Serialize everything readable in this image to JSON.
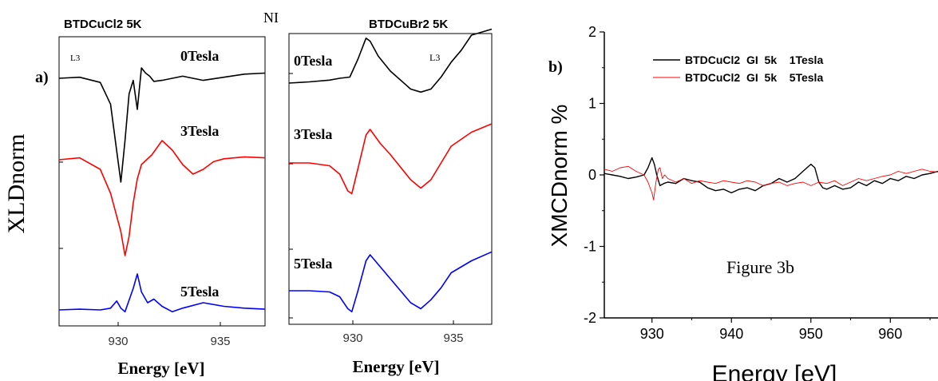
{
  "chart_data": [
    {
      "type": "line",
      "panel_label": "a)",
      "title": "BTDCuCl2  5K",
      "ylabel": "XLDnorm",
      "xlabel": "Energy [eV]",
      "xticks": [
        "930",
        "935"
      ],
      "xlim": [
        927,
        937
      ],
      "edge_label": "L3",
      "series": [
        {
          "name": "0Tesla",
          "color": "#000000",
          "x": [
            927,
            928,
            929,
            929.5,
            929.8,
            930,
            930.2,
            930.4,
            930.6,
            930.8,
            931,
            931.2,
            931.4,
            931.6,
            932,
            933,
            934,
            935,
            936,
            937
          ],
          "y": [
            0,
            0.01,
            -0.04,
            -0.25,
            -0.7,
            -1.0,
            -0.6,
            -0.15,
            -0.02,
            -0.3,
            0.1,
            0.05,
            0.02,
            -0.03,
            -0.02,
            0.02,
            -0.02,
            0.01,
            0.04,
            0.05
          ]
        },
        {
          "name": "3Tesla",
          "color": "#ff0000",
          "x": [
            927,
            928,
            929,
            929.5,
            930,
            930.2,
            930.4,
            930.6,
            930.8,
            931,
            931.5,
            932,
            932.5,
            933,
            933.5,
            934,
            934.5,
            935,
            936,
            937
          ],
          "y": [
            0,
            0.02,
            -0.1,
            -0.35,
            -0.75,
            -1.0,
            -0.8,
            -0.45,
            -0.2,
            -0.05,
            0.05,
            0.2,
            0.1,
            -0.05,
            -0.15,
            -0.1,
            -0.02,
            0.01,
            0.03,
            0.02
          ]
        },
        {
          "name": "5Tesla",
          "color": "#0000ff",
          "x": [
            927,
            928,
            929,
            929.5,
            929.8,
            930,
            930.2,
            930.6,
            930.8,
            931,
            931.3,
            931.6,
            932,
            932.5,
            933,
            934,
            935,
            936,
            937
          ],
          "y": [
            0,
            0.02,
            0.0,
            0.05,
            0.25,
            0.05,
            -0.05,
            0.6,
            1.0,
            0.5,
            0.2,
            0.3,
            0.1,
            -0.05,
            0.05,
            0.2,
            0.1,
            0.05,
            0.02
          ]
        }
      ]
    },
    {
      "type": "line",
      "title": "BTDCuBr2  5K",
      "header": "NI",
      "xlabel": "Energy [eV]",
      "xticks": [
        "930",
        "935"
      ],
      "xlim": [
        927,
        937
      ],
      "edge_label": "L3",
      "series": [
        {
          "name": "0Tesla",
          "color": "#000000",
          "x": [
            927,
            928,
            929,
            929.5,
            930,
            930.4,
            930.8,
            931,
            931.4,
            932,
            933,
            933.5,
            934,
            934.5,
            935,
            935.5,
            936,
            937
          ],
          "y": [
            0,
            0.02,
            0.05,
            0.08,
            0.1,
            0.4,
            0.75,
            0.7,
            0.45,
            0.2,
            -0.1,
            -0.15,
            -0.1,
            0.1,
            0.35,
            0.55,
            0.8,
            0.9
          ]
        },
        {
          "name": "3Tesla",
          "color": "#ff0000",
          "x": [
            927,
            928,
            929,
            929.5,
            929.9,
            930.1,
            930.4,
            930.8,
            931,
            931.5,
            932,
            933,
            933.5,
            934,
            934.5,
            935,
            936,
            937
          ],
          "y": [
            0,
            0.0,
            -0.05,
            -0.2,
            -0.5,
            -0.55,
            -0.1,
            0.5,
            0.6,
            0.35,
            0.15,
            -0.3,
            -0.45,
            -0.3,
            0.0,
            0.3,
            0.55,
            0.7
          ]
        },
        {
          "name": "5Tesla",
          "color": "#0000ff",
          "x": [
            927,
            928,
            929,
            929.5,
            929.9,
            930.1,
            930.4,
            930.8,
            931,
            931.5,
            932,
            933,
            933.5,
            934,
            934.5,
            935,
            936,
            937
          ],
          "y": [
            0,
            0.0,
            -0.02,
            -0.1,
            -0.3,
            -0.35,
            0.0,
            0.5,
            0.6,
            0.4,
            0.2,
            -0.2,
            -0.3,
            -0.15,
            0.05,
            0.3,
            0.5,
            0.65
          ]
        }
      ]
    },
    {
      "type": "line",
      "panel_label": "b)",
      "ylabel": "XMCDnorm %",
      "xlabel": "Energy [eV]",
      "xlim": [
        924,
        966
      ],
      "ylim": [
        -2,
        2
      ],
      "xticks": [
        930,
        940,
        950,
        960
      ],
      "yticks": [
        -2,
        -1,
        0,
        1,
        2
      ],
      "annotation": "Figure 3b",
      "series": [
        {
          "name": "BTDCuCl2  GI  5k    1Tesla",
          "color": "#000000",
          "x": [
            924,
            925,
            926,
            927,
            928,
            929,
            929.5,
            930,
            930.3,
            930.6,
            931,
            931.5,
            932,
            933,
            934,
            935,
            936,
            937,
            938,
            939,
            940,
            941,
            942,
            943,
            944,
            945,
            946,
            947,
            948,
            949,
            950,
            950.5,
            951,
            951.5,
            952,
            953,
            954,
            955,
            956,
            957,
            958,
            959,
            960,
            961,
            962,
            963,
            964,
            965,
            966
          ],
          "y": [
            0.02,
            0.0,
            -0.02,
            -0.05,
            -0.03,
            0.0,
            0.1,
            0.24,
            0.15,
            0.0,
            -0.15,
            -0.12,
            -0.1,
            -0.12,
            -0.05,
            -0.08,
            -0.1,
            -0.18,
            -0.22,
            -0.2,
            -0.25,
            -0.2,
            -0.18,
            -0.22,
            -0.15,
            -0.12,
            -0.05,
            -0.1,
            -0.05,
            0.05,
            0.15,
            0.1,
            -0.1,
            -0.18,
            -0.2,
            -0.15,
            -0.2,
            -0.18,
            -0.1,
            -0.15,
            -0.08,
            -0.12,
            -0.05,
            -0.08,
            -0.02,
            -0.05,
            0.0,
            0.02,
            0.05
          ]
        },
        {
          "name": "BTDCuCl2  GI  5k    5Tesla",
          "color": "#ff0000",
          "x": [
            924,
            925,
            926,
            927,
            928,
            929,
            929.5,
            930,
            930.2,
            930.5,
            930.8,
            931,
            931.3,
            931.6,
            932,
            933,
            934,
            935,
            936,
            937,
            938,
            939,
            940,
            941,
            942,
            943,
            944,
            945,
            946,
            947,
            948,
            949,
            950,
            951,
            952,
            953,
            954,
            955,
            956,
            957,
            958,
            959,
            960,
            961,
            962,
            963,
            964,
            965,
            966
          ],
          "y": [
            0.08,
            0.05,
            0.1,
            0.12,
            0.05,
            0.0,
            -0.1,
            -0.25,
            -0.35,
            -0.1,
            0.08,
            0.1,
            -0.05,
            0.0,
            -0.05,
            -0.1,
            -0.05,
            -0.12,
            -0.08,
            -0.1,
            -0.12,
            -0.08,
            -0.1,
            -0.12,
            -0.08,
            -0.1,
            -0.15,
            -0.12,
            -0.1,
            -0.15,
            -0.12,
            -0.1,
            -0.15,
            -0.1,
            -0.12,
            -0.08,
            -0.15,
            -0.1,
            -0.05,
            -0.08,
            -0.05,
            -0.02,
            0.0,
            0.05,
            0.02,
            0.05,
            0.08,
            0.05,
            0.04
          ]
        }
      ]
    }
  ]
}
